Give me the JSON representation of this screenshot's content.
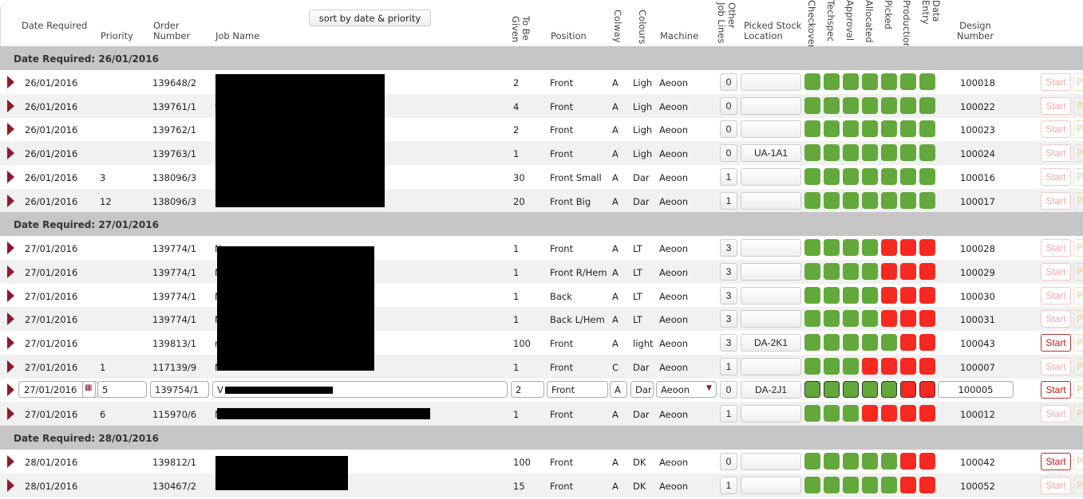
{
  "header": {
    "date_required": "Date Required",
    "priority": "Priority",
    "order_number": "Order Number",
    "job_name": "Job Name",
    "sort_button": "sort by date & priority",
    "to_be_given": "To Be Given",
    "position": "Position",
    "colway": "Colway",
    "colours": "Colours",
    "machine": "Machine",
    "other_job_lines": "Other Job Lines",
    "picked_stock_location": "Picked Stock Location",
    "checkover": "Checkover",
    "techspec": "Techspec",
    "approval": "Approval",
    "allocated": "Allocated",
    "picked": "Picked",
    "production": "Production",
    "data_entry": "Data Entry",
    "design_number": "Design Number"
  },
  "colors": {
    "green": "#62a83a",
    "red": "#f5291f",
    "arrow": "#8b1a2b",
    "group_bg": "#c6c6c6"
  },
  "groups": [
    {
      "label": "Date Required: 26/01/2016",
      "rows": [
        {
          "date": "26/01/2016",
          "priority": "",
          "order": "139648/2",
          "job": "",
          "given": "2",
          "position": "Front",
          "colway": "A",
          "colours": "Ligh",
          "machine": "Aeoon",
          "other": "0",
          "stock": "",
          "status": [
            "g",
            "g",
            "g",
            "g",
            "g",
            "g",
            "g"
          ],
          "design": "100018",
          "start": "Start",
          "start_active": false,
          "p": "P"
        },
        {
          "date": "26/01/2016",
          "priority": "",
          "order": "139761/1",
          "job": "ver",
          "given": "4",
          "position": "Front",
          "colway": "A",
          "colours": "Ligh",
          "machine": "Aeoon",
          "other": "0",
          "stock": "",
          "status": [
            "g",
            "g",
            "g",
            "g",
            "g",
            "g",
            "g"
          ],
          "design": "100022",
          "start": "Start",
          "start_active": false,
          "p": "P"
        },
        {
          "date": "26/01/2016",
          "priority": "",
          "order": "139762/1",
          "job": "",
          "given": "2",
          "position": "Front",
          "colway": "A",
          "colours": "Ligh",
          "machine": "Aeoon",
          "other": "0",
          "stock": "",
          "status": [
            "g",
            "g",
            "g",
            "g",
            "g",
            "g",
            "g"
          ],
          "design": "100023",
          "start": "Start",
          "start_active": false,
          "p": "P"
        },
        {
          "date": "26/01/2016",
          "priority": "",
          "order": "139763/1",
          "job": "",
          "given": "1",
          "position": "Front",
          "colway": "A",
          "colours": "Ligh",
          "machine": "Aeoon",
          "other": "0",
          "stock": "UA-1A1",
          "status": [
            "g",
            "g",
            "g",
            "g",
            "g",
            "g",
            "g"
          ],
          "design": "100024",
          "start": "Start",
          "start_active": false,
          "p": "P"
        },
        {
          "date": "26/01/2016",
          "priority": "3",
          "order": "138096/3",
          "job": "",
          "given": "30",
          "position": "Front Small",
          "colway": "A",
          "colours": "Dar",
          "machine": "Aeoon",
          "other": "1",
          "stock": "",
          "status": [
            "g",
            "g",
            "g",
            "g",
            "g",
            "g",
            "g"
          ],
          "design": "100016",
          "start": "Start",
          "start_active": false,
          "p": "P"
        },
        {
          "date": "26/01/2016",
          "priority": "12",
          "order": "138096/3",
          "job": "",
          "given": "20",
          "position": "Front Big",
          "colway": "A",
          "colours": "Dar",
          "machine": "Aeoon",
          "other": "1",
          "stock": "",
          "status": [
            "g",
            "g",
            "g",
            "g",
            "g",
            "g",
            "g"
          ],
          "design": "100017",
          "start": "Start",
          "start_active": false,
          "p": "P"
        }
      ]
    },
    {
      "label": "Date Required: 27/01/2016",
      "rows": [
        {
          "date": "27/01/2016",
          "priority": "",
          "order": "139774/1",
          "job": "N",
          "given": "1",
          "position": "Front",
          "colway": "A",
          "colours": "LT",
          "machine": "Aeoon",
          "other": "3",
          "stock": "",
          "status": [
            "g",
            "g",
            "g",
            "g",
            "r",
            "r",
            "r"
          ],
          "design": "100028",
          "start": "Start",
          "start_active": false,
          "p": "P"
        },
        {
          "date": "27/01/2016",
          "priority": "",
          "order": "139774/1",
          "job": "N",
          "given": "1",
          "position": "Front R/Hem",
          "colway": "A",
          "colours": "LT",
          "machine": "Aeoon",
          "other": "3",
          "stock": "",
          "status": [
            "g",
            "g",
            "g",
            "g",
            "r",
            "r",
            "r"
          ],
          "design": "100029",
          "start": "Start",
          "start_active": false,
          "p": "P"
        },
        {
          "date": "27/01/2016",
          "priority": "",
          "order": "139774/1",
          "job": "N",
          "given": "1",
          "position": "Back",
          "colway": "A",
          "colours": "LT",
          "machine": "Aeoon",
          "other": "3",
          "stock": "",
          "status": [
            "g",
            "g",
            "g",
            "g",
            "r",
            "r",
            "r"
          ],
          "design": "100030",
          "start": "Start",
          "start_active": false,
          "p": "P"
        },
        {
          "date": "27/01/2016",
          "priority": "",
          "order": "139774/1",
          "job": "N",
          "given": "1",
          "position": "Back L/Hem",
          "colway": "A",
          "colours": "LT",
          "machine": "Aeoon",
          "other": "3",
          "stock": "",
          "status": [
            "g",
            "g",
            "g",
            "g",
            "r",
            "r",
            "r"
          ],
          "design": "100031",
          "start": "Start",
          "start_active": false,
          "p": "P"
        },
        {
          "date": "27/01/2016",
          "priority": "",
          "order": "139813/1",
          "job": "r",
          "given": "100",
          "position": "Front",
          "colway": "A",
          "colours": "light",
          "machine": "Aeoon",
          "other": "3",
          "stock": "DA-2K1",
          "status": [
            "g",
            "g",
            "g",
            "g",
            "g",
            "r",
            "r"
          ],
          "design": "100043",
          "start": "Start",
          "start_active": true,
          "p": "P"
        },
        {
          "date": "27/01/2016",
          "priority": "1",
          "order": "117139/9",
          "job": "N",
          "given": "1",
          "position": "Front",
          "colway": "C",
          "colours": "Dar",
          "machine": "Aeoon",
          "other": "1",
          "stock": "",
          "status": [
            "g",
            "g",
            "g",
            "r",
            "r",
            "r",
            "r"
          ],
          "design": "100007",
          "start": "Start",
          "start_active": false,
          "p": "P"
        },
        {
          "edit": true,
          "date": "27/01/2016",
          "priority": "5",
          "order": "139754/1",
          "job": "V",
          "given": "2",
          "position": "Front",
          "colway": "A",
          "colours": "Dar",
          "machine": "Aeoon",
          "other": "0",
          "stock": "DA-2J1",
          "status": [
            "g",
            "g",
            "g",
            "g",
            "g",
            "r",
            "r"
          ],
          "design": "100005",
          "start": "Start",
          "start_active": true,
          "p": "P"
        },
        {
          "date": "27/01/2016",
          "priority": "6",
          "order": "115970/6",
          "job": "N",
          "given": "1",
          "position": "Front",
          "colway": "A",
          "colours": "Dar",
          "machine": "Aeoon",
          "other": "1",
          "stock": "",
          "status": [
            "g",
            "g",
            "g",
            "r",
            "r",
            "r",
            "r"
          ],
          "design": "100012",
          "start": "Start",
          "start_active": false,
          "p": "P"
        }
      ]
    },
    {
      "label": "Date Required: 28/01/2016",
      "rows": [
        {
          "date": "28/01/2016",
          "priority": "",
          "order": "139812/1",
          "job": "",
          "given": "100",
          "position": "Front",
          "colway": "A",
          "colours": "DK",
          "machine": "Aeoon",
          "other": "0",
          "stock": "",
          "status": [
            "g",
            "g",
            "g",
            "g",
            "g",
            "r",
            "r"
          ],
          "design": "100042",
          "start": "Start",
          "start_active": true,
          "p": "P"
        },
        {
          "date": "28/01/2016",
          "priority": "",
          "order": "130467/2",
          "job": "",
          "given": "15",
          "position": "Front",
          "colway": "A",
          "colours": "DK",
          "machine": "Aeoon",
          "other": "1",
          "stock": "",
          "status": [
            "g",
            "g",
            "g",
            "g",
            "g",
            "r",
            "r"
          ],
          "design": "100052",
          "start": "Start",
          "start_active": false,
          "start_active_note": "",
          "p": "P"
        }
      ]
    }
  ]
}
